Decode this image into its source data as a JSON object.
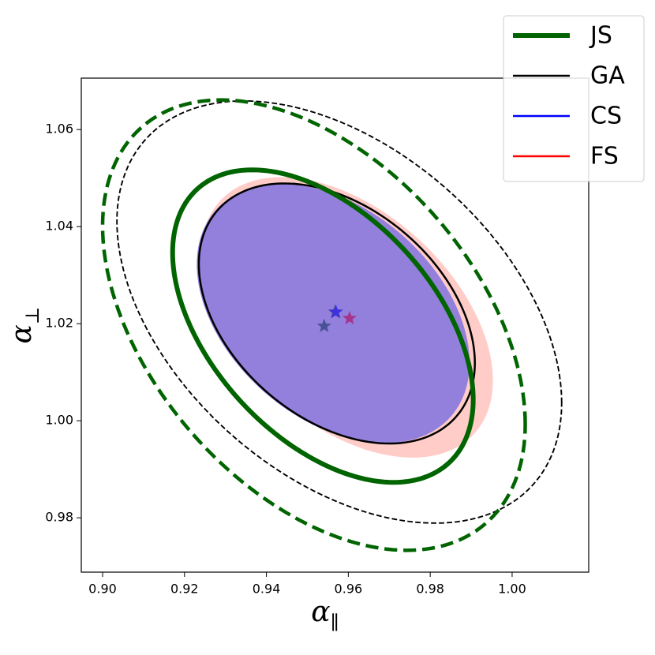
{
  "chart_data": {
    "type": "contour",
    "x_label": {
      "symbol": "α",
      "sub": "∥"
    },
    "y_label": {
      "symbol": "α",
      "sub": "⊥"
    },
    "xlim": [
      0.8948,
      1.0187
    ],
    "ylim": [
      0.9688,
      1.0706
    ],
    "xticks": [
      {
        "value": 0.9,
        "label": "0.90"
      },
      0.92,
      0.94,
      0.96,
      0.98,
      {
        "value": 1.0,
        "label": "1.00"
      }
    ],
    "yticks": [
      0.98,
      {
        "value": 1.0,
        "label": "1.00"
      },
      1.02,
      1.04,
      1.06
    ],
    "legend": "upper right",
    "series": [
      {
        "name": "JS",
        "color": "#006400",
        "style": "line",
        "width": 6,
        "star_color": "#3d4a8a",
        "best_fit": [
          0.9541,
          1.0195
        ],
        "contours": [
          {
            "cx": 0.9538,
            "cy": 1.0195,
            "sx": 0.0367,
            "sy": 0.0322,
            "rho": -0.47
          },
          {
            "cx": 0.9516,
            "cy": 1.0197,
            "sx": 0.0516,
            "sy": 0.0464,
            "rho": -0.44
          }
        ]
      },
      {
        "name": "GA",
        "color": "#000000",
        "style": "line",
        "width": 2.5,
        "star_color": "#444466",
        "best_fit": [
          0.9568,
          1.0224
        ],
        "contours": [
          {
            "cx": 0.9572,
            "cy": 1.0221,
            "sx": 0.0337,
            "sy": 0.0268,
            "rho": -0.38
          },
          {
            "cx": 0.9578,
            "cy": 1.0224,
            "sx": 0.0543,
            "sy": 0.0435,
            "rho": -0.43
          }
        ]
      },
      {
        "name": "CS",
        "color": "#0000ff",
        "style": "fill",
        "fill": "#9380dc",
        "star_color": "#3a2ef0",
        "best_fit": [
          0.957,
          1.0224
        ],
        "contours": [
          {
            "cx": 0.9563,
            "cy": 1.0221,
            "sx": 0.0333,
            "sy": 0.0267,
            "rho": -0.38
          }
        ]
      },
      {
        "name": "FS",
        "color": "#ff0000",
        "style": "fill",
        "fill": "#ffccc8",
        "star_color": "#a8287e",
        "best_fit": [
          0.9603,
          1.0211
        ],
        "contours": [
          {
            "cx": 0.9597,
            "cy": 1.0213,
            "sx": 0.0356,
            "sy": 0.0289,
            "rho": -0.45
          }
        ]
      }
    ]
  }
}
